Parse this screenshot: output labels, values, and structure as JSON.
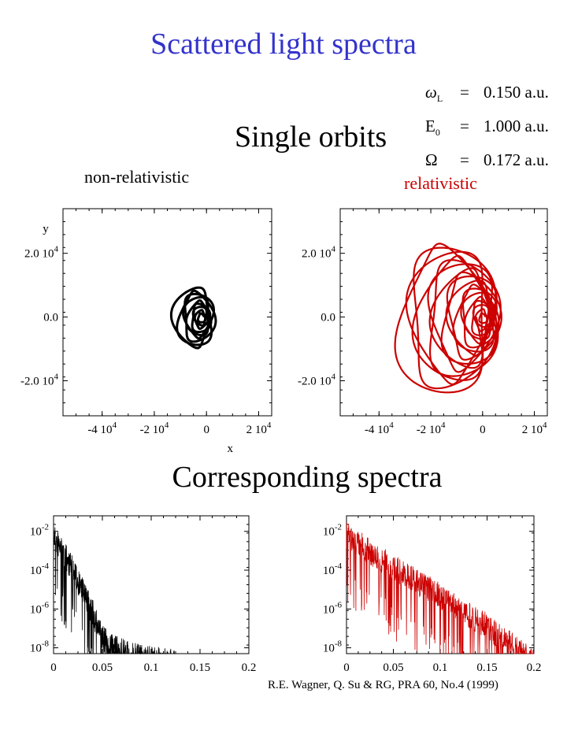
{
  "title": "Scattered light spectra",
  "section_orbits": "Single orbits",
  "section_spectra": "Corresponding spectra",
  "label_nonrel": "non-relativistic",
  "label_rel": "relativistic",
  "parameters": [
    {
      "symbol": "ω",
      "sub": "L",
      "eq": "=",
      "value": "0.150 a.u."
    },
    {
      "symbol": "E",
      "sub": "0",
      "eq": "=",
      "value": "1.000 a.u."
    },
    {
      "symbol": "Ω",
      "sub": "",
      "eq": "=",
      "value": "0.172 a.u."
    }
  ],
  "citation": "R.E. Wagner, Q. Su & RG, PRA 60, No.4 (1999)",
  "colors": {
    "title": "#3333cc",
    "relativistic": "#cc0000",
    "nonrelativistic": "#000000"
  },
  "chart_data": [
    {
      "id": "orbit-nonrel",
      "type": "line",
      "xlabel": "x",
      "ylabel": "y",
      "xlim": [
        -55000,
        25000
      ],
      "ylim": [
        -31000,
        34000
      ],
      "xticks": [
        {
          "v": -40000,
          "m": "-4 10",
          "e": "4"
        },
        {
          "v": -20000,
          "m": "-2 10",
          "e": "4"
        },
        {
          "v": 0,
          "m": "0",
          "e": ""
        },
        {
          "v": 20000,
          "m": "2 10",
          "e": "4"
        }
      ],
      "yticks": [
        {
          "v": 20000,
          "m": "2.0 10",
          "e": "4"
        },
        {
          "v": 0,
          "m": "0.0",
          "e": ""
        },
        {
          "v": -20000,
          "m": "-2.0 10",
          "e": "4"
        }
      ],
      "orbit": {
        "cx": -2000,
        "rx_min": 800,
        "rx_max": 7500,
        "ry_min": 900,
        "ry_max": 10000,
        "shift": 6000,
        "loops": 9
      },
      "color": "#000000"
    },
    {
      "id": "orbit-rel",
      "type": "line",
      "xlim": [
        -55000,
        25000
      ],
      "ylim": [
        -31000,
        34000
      ],
      "xticks": [
        {
          "v": -40000,
          "m": "-4 10",
          "e": "4"
        },
        {
          "v": -20000,
          "m": "-2 10",
          "e": "4"
        },
        {
          "v": 0,
          "m": "0",
          "e": ""
        },
        {
          "v": 20000,
          "m": "2 10",
          "e": "4"
        }
      ],
      "yticks": [
        {
          "v": 20000,
          "m": "2.0 10",
          "e": "4"
        },
        {
          "v": 0,
          "m": "0.0",
          "e": ""
        },
        {
          "v": -20000,
          "m": "-2.0 10",
          "e": "4"
        }
      ],
      "orbit": {
        "cx": 0,
        "rx_min": 800,
        "rx_max": 17000,
        "ry_min": 900,
        "ry_max": 24000,
        "shift": 32000,
        "loops": 18
      },
      "color": "#cc0000"
    },
    {
      "id": "spectrum-nonrel",
      "type": "line",
      "yscale": "log",
      "xlim": [
        0,
        0.2
      ],
      "ylim_exp": [
        -8.3,
        -1.2
      ],
      "xticks": [
        {
          "v": 0,
          "t": "0"
        },
        {
          "v": 0.05,
          "t": "0.05"
        },
        {
          "v": 0.1,
          "t": "0.1"
        },
        {
          "v": 0.15,
          "t": "0.15"
        },
        {
          "v": 0.2,
          "t": "0.2"
        }
      ],
      "yticks": [
        {
          "v": -2,
          "m": "10",
          "e": "-2"
        },
        {
          "v": -4,
          "m": "10",
          "e": "-4"
        },
        {
          "v": -6,
          "m": "10",
          "e": "-6"
        },
        {
          "v": -8,
          "m": "10",
          "e": "-8"
        }
      ],
      "envelope": [
        [
          0,
          -1.6
        ],
        [
          0.01,
          -2.4
        ],
        [
          0.02,
          -3.3
        ],
        [
          0.03,
          -4.4
        ],
        [
          0.04,
          -5.5
        ],
        [
          0.05,
          -6.8
        ],
        [
          0.06,
          -7.3
        ],
        [
          0.08,
          -7.7
        ],
        [
          0.1,
          -7.9
        ],
        [
          0.12,
          -8.05
        ],
        [
          0.13,
          -8.3
        ]
      ],
      "color": "#000000"
    },
    {
      "id": "spectrum-rel",
      "type": "line",
      "yscale": "log",
      "xlim": [
        0,
        0.2
      ],
      "ylim_exp": [
        -8.3,
        -1.2
      ],
      "xticks": [
        {
          "v": 0,
          "t": "0"
        },
        {
          "v": 0.05,
          "t": "0.05"
        },
        {
          "v": 0.1,
          "t": "0.1"
        },
        {
          "v": 0.15,
          "t": "0.15"
        },
        {
          "v": 0.2,
          "t": "0.2"
        }
      ],
      "yticks": [
        {
          "v": -2,
          "m": "10",
          "e": "-2"
        },
        {
          "v": -4,
          "m": "10",
          "e": "-4"
        },
        {
          "v": -6,
          "m": "10",
          "e": "-6"
        },
        {
          "v": -8,
          "m": "10",
          "e": "-8"
        }
      ],
      "envelope": [
        [
          0,
          -1.5
        ],
        [
          0.05,
          -3.2
        ],
        [
          0.1,
          -4.6
        ],
        [
          0.15,
          -6.2
        ],
        [
          0.2,
          -8.1
        ]
      ],
      "color": "#cc0000"
    }
  ]
}
